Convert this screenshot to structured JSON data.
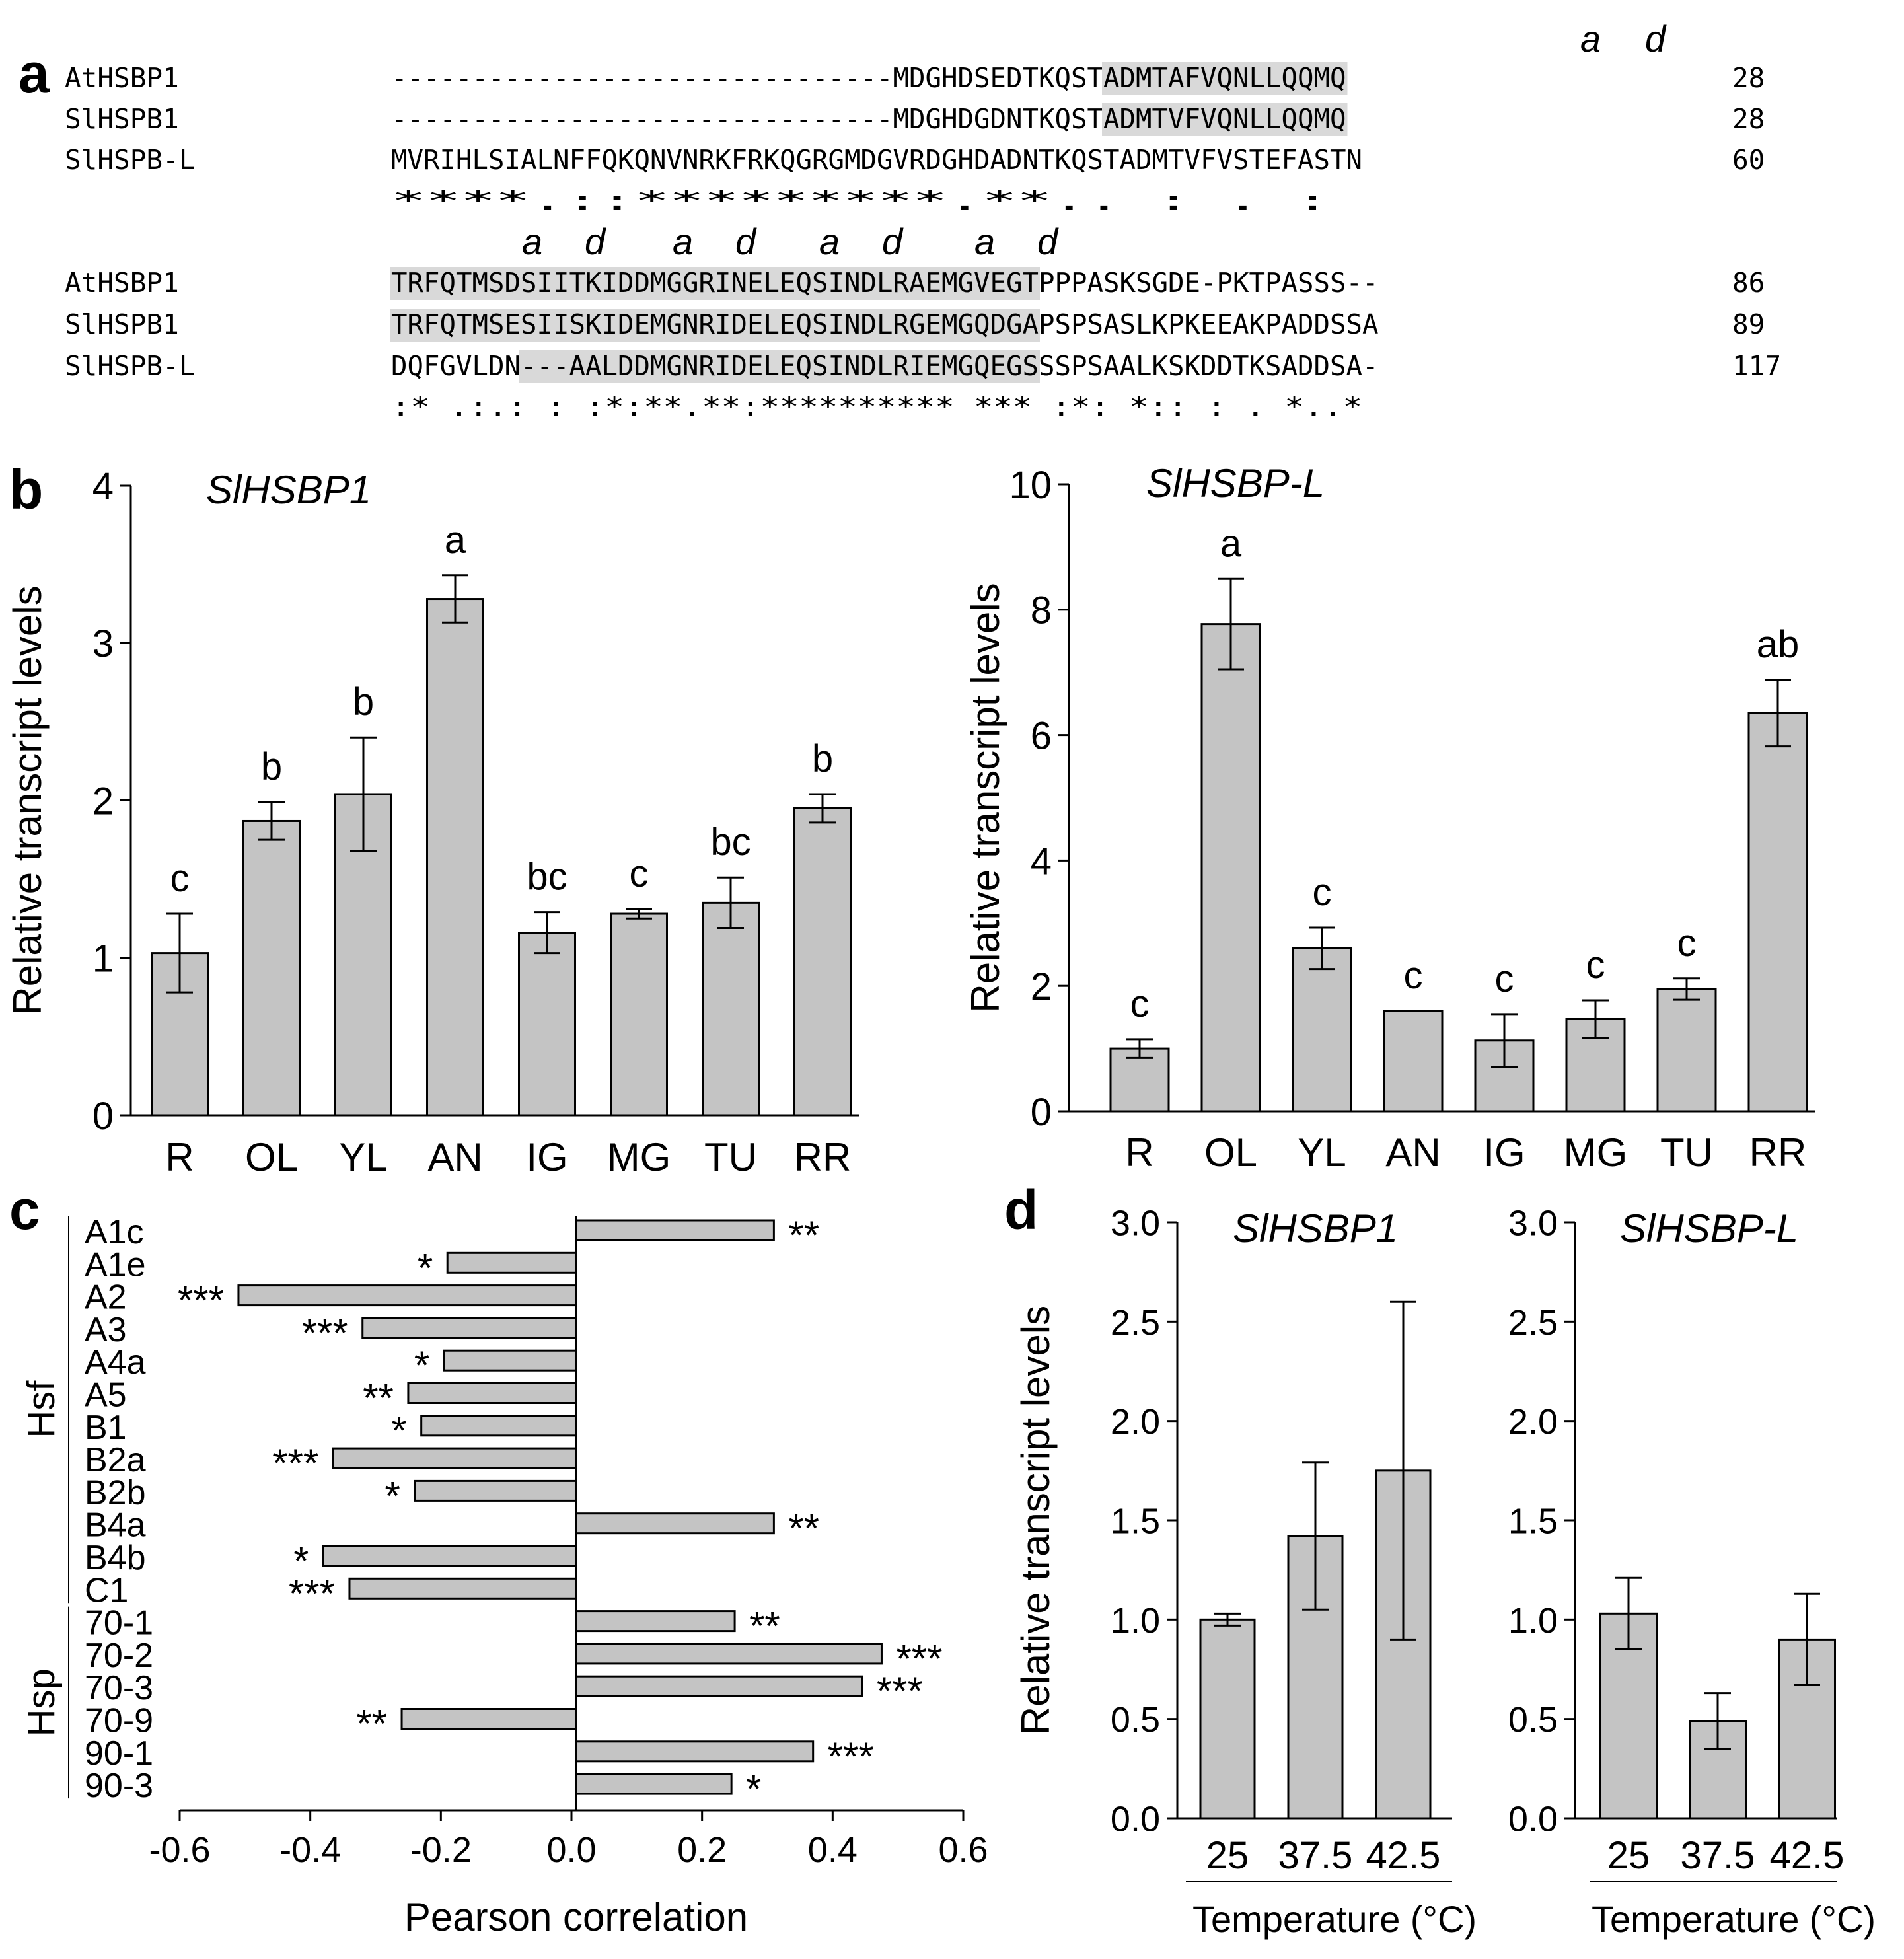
{
  "panels": {
    "a": "a",
    "b": "b",
    "c": "c",
    "d": "d"
  },
  "alignment": {
    "heptads_top": [
      "a",
      "d"
    ],
    "heptads_bottom": [
      "a",
      "d",
      "a",
      "d",
      "a",
      "d",
      "a",
      "d"
    ],
    "block1": {
      "rows": [
        {
          "name": "AtHSBP1",
          "pre": "-------------------------------MDGHDSEDTKQST",
          "hl": "ADMTAFVQNLLQQMQ",
          "post": "",
          "num": "28"
        },
        {
          "name": "SlHSPB1",
          "pre": "-------------------------------MDGHDGDNTKQST",
          "hl": "ADMTVFVQNLLQQMQ",
          "post": "",
          "num": "28"
        },
        {
          "name": "SlHSPB-L",
          "pre": "MVRIHLSIALNFFQKQNVNRKFRKQGRGMDGVRDGHDADNTKQSTADMTVFVSTEFASTN",
          "hl": "",
          "post": "",
          "num": "60"
        }
      ],
      "consensus": "                               ****.::*********.**.. : . :"
    },
    "block2": {
      "rows": [
        {
          "name": "AtHSBP1",
          "pre": "",
          "hl": "TRFQTMSDSIITKIDDMGGRINELEQSINDLRAEMGVEGT",
          "post": "PPPASKSGDE-PKTPASSS--",
          "num": "86"
        },
        {
          "name": "SlHSPB1",
          "pre": "",
          "hl": "TRFQTMSESIISKIDEMGNRIDELEQSINDLRGEMGQDGA",
          "post": "PSPSASLKPKEEAKPADDSSA",
          "num": "89"
        },
        {
          "name": "SlHSPB-L",
          "pre": "DQFGVLDN",
          "hl": "---AALDDMGNRIDELEQSINDLRIEMGQEGS",
          "post": "SSPSAALKSKDDTKSADDSA-",
          "num": "117"
        }
      ],
      "consensus": " :* .:.:    : :*:**.**:********** *** :*:  *::    :   . *..*"
    }
  },
  "chart_data": [
    {
      "id": "b-left",
      "type": "bar",
      "title": "SlHSBP1",
      "ylabel": "Relative transcript levels",
      "xlabel": "",
      "ylim": [
        0,
        4
      ],
      "yticks": [
        "0",
        "1",
        "2",
        "3",
        "4"
      ],
      "categories": [
        "R",
        "OL",
        "YL",
        "AN",
        "IG",
        "MG",
        "TU",
        "RR"
      ],
      "values": [
        1.03,
        1.87,
        2.04,
        3.28,
        1.16,
        1.28,
        1.35,
        1.95
      ],
      "errors": [
        0.25,
        0.12,
        0.36,
        0.15,
        0.13,
        0.03,
        0.16,
        0.09
      ],
      "letters": [
        "c",
        "b",
        "b",
        "a",
        "bc",
        "c",
        "bc",
        "b"
      ]
    },
    {
      "id": "b-right",
      "type": "bar",
      "title": "SlHSBP-L",
      "ylabel": "Relative transcript levels",
      "xlabel": "",
      "ylim": [
        0,
        10
      ],
      "yticks": [
        "0",
        "2",
        "4",
        "6",
        "8",
        "10"
      ],
      "categories": [
        "R",
        "OL",
        "YL",
        "AN",
        "IG",
        "MG",
        "TU",
        "RR"
      ],
      "values": [
        1.0,
        7.77,
        2.6,
        1.6,
        1.13,
        1.47,
        1.95,
        6.35
      ],
      "errors": [
        0.15,
        0.72,
        0.33,
        0.0,
        0.42,
        0.3,
        0.17,
        0.53
      ],
      "letters": [
        "c",
        "a",
        "c",
        "c",
        "c",
        "c",
        "c",
        "ab"
      ]
    },
    {
      "id": "c",
      "type": "bar",
      "orientation": "horizontal",
      "xlabel": "Pearson correlation",
      "xlim": [
        -0.6,
        0.6
      ],
      "xticks": [
        "-0.6",
        "-0.4",
        "-0.2",
        "0.0",
        "0.2",
        "0.4",
        "0.6"
      ],
      "groups": [
        {
          "name": "Hsf",
          "from": 0,
          "to": 11
        },
        {
          "name": "Hsp",
          "from": 12,
          "to": 17
        }
      ],
      "categories": [
        "A1c",
        "A1e",
        "A2",
        "A3",
        "A4a",
        "A5",
        "B1",
        "B2a",
        "B2b",
        "B4a",
        "B4b",
        "C1",
        "70-1",
        "70-2",
        "70-3",
        "70-9",
        "90-1",
        "90-3"
      ],
      "values": [
        0.31,
        -0.19,
        -0.51,
        -0.32,
        -0.195,
        -0.25,
        -0.23,
        -0.365,
        -0.24,
        0.31,
        -0.38,
        -0.34,
        0.25,
        0.475,
        0.445,
        -0.26,
        0.37,
        0.245
      ],
      "significance": [
        "**",
        "*",
        "***",
        "***",
        "*",
        "**",
        "*",
        "***",
        "*",
        "**",
        "*",
        "***",
        "**",
        "***",
        "***",
        "**",
        "***",
        "*"
      ]
    },
    {
      "id": "d-left",
      "type": "bar",
      "title": "SlHSBP1",
      "ylabel": "Relative transcript levels",
      "xlabel": "Temperature (°C)",
      "ylim": [
        0,
        3
      ],
      "yticks": [
        "0.0",
        "0.5",
        "1.0",
        "1.5",
        "2.0",
        "2.5",
        "3.0"
      ],
      "categories": [
        "25",
        "37.5",
        "42.5"
      ],
      "values": [
        1.0,
        1.42,
        1.75
      ],
      "errors": [
        0.03,
        0.37,
        0.85
      ]
    },
    {
      "id": "d-right",
      "type": "bar",
      "title": "SlHSBP-L",
      "ylabel": "",
      "xlabel": "Temperature (°C)",
      "ylim": [
        0,
        3
      ],
      "yticks": [
        "0.0",
        "0.5",
        "1.0",
        "1.5",
        "2.0",
        "2.5",
        "3.0"
      ],
      "categories": [
        "25",
        "37.5",
        "42.5"
      ],
      "values": [
        1.03,
        0.49,
        0.9
      ],
      "errors": [
        0.18,
        0.14,
        0.23
      ]
    }
  ]
}
